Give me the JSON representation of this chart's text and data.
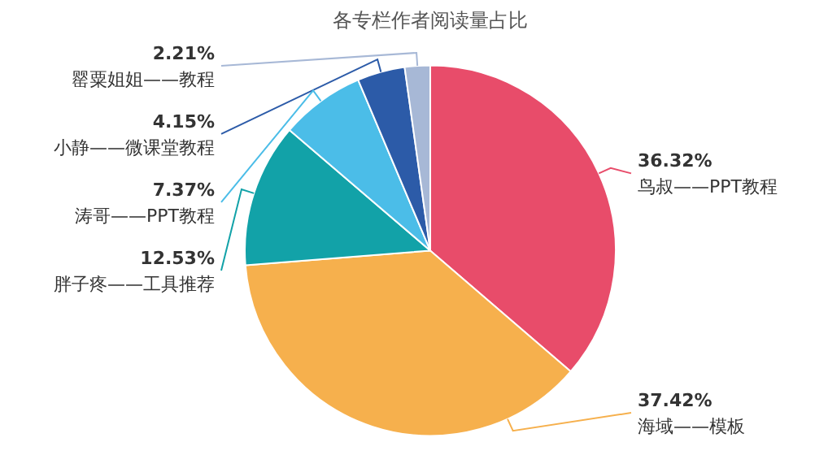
{
  "chart_data": {
    "type": "pie",
    "title": "各专栏作者阅读量占比",
    "categories": [
      "鸟叔——PPT教程",
      "海域——模板",
      "胖子疼——工具推荐",
      "涛哥——PPT教程",
      "小静——微课堂教程",
      "罂粟姐姐——教程"
    ],
    "values": [
      36.32,
      37.42,
      12.53,
      7.37,
      4.15,
      2.21
    ],
    "value_labels": [
      "36.32%",
      "37.42%",
      "12.53%",
      "7.37%",
      "4.15%",
      "2.21%"
    ],
    "colors": [
      "#e84c6a",
      "#f6b04d",
      "#12a2a8",
      "#4bbde8",
      "#2c5ba8",
      "#a7b8d6"
    ],
    "legend": false
  }
}
